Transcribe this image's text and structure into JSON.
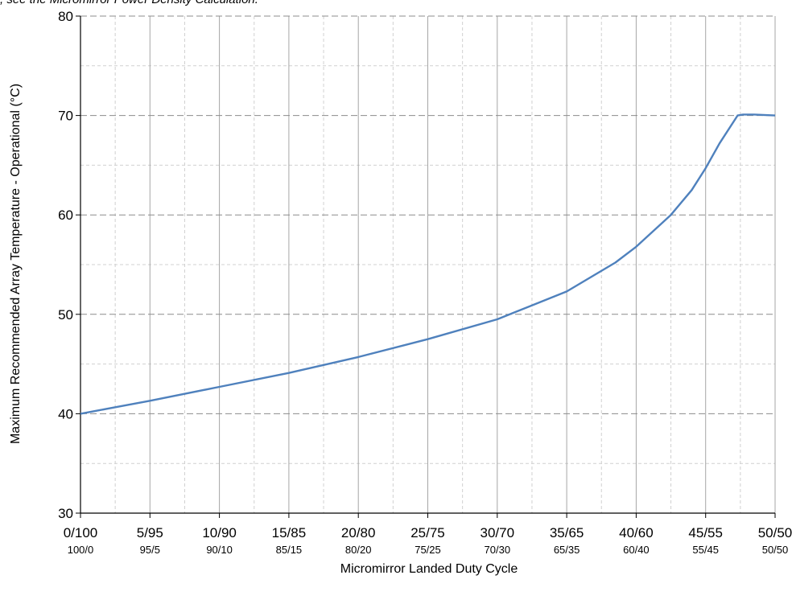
{
  "caption_fragment": ", see the Micromirror Power Density Calculation.",
  "chart_data": {
    "type": "line",
    "title": "",
    "xlabel": "Micromirror Landed Duty Cycle",
    "ylabel": "Maximum Recommended Array Temperature - Operational (°C)",
    "ylim": [
      30,
      80
    ],
    "yticks": [
      30,
      40,
      50,
      60,
      70,
      80
    ],
    "xlim": [
      0,
      50
    ],
    "xticks": [
      0,
      5,
      10,
      15,
      20,
      25,
      30,
      35,
      40,
      45,
      50
    ],
    "xtick_labels_primary": [
      "0/100",
      "5/95",
      "10/90",
      "15/85",
      "20/80",
      "25/75",
      "30/70",
      "35/65",
      "40/60",
      "45/55",
      "50/50"
    ],
    "xtick_labels_secondary": [
      "100/0",
      "95/5",
      "90/10",
      "85/15",
      "80/20",
      "75/25",
      "70/30",
      "65/35",
      "60/40",
      "55/45",
      "50/50"
    ],
    "grid": true,
    "legend": "none",
    "series": [
      {
        "color": "#4f81bd",
        "x": [
          0,
          5,
          10,
          15,
          20,
          25,
          30,
          35,
          38.5,
          40,
          42.5,
          44,
          45,
          46,
          47.3,
          47.7,
          48.5,
          50
        ],
        "y": [
          40,
          41.3,
          42.7,
          44.1,
          45.7,
          47.5,
          49.5,
          52.3,
          55.2,
          56.8,
          60.0,
          62.5,
          64.7,
          67.2,
          70.0,
          70.1,
          70.1,
          70.0
        ]
      }
    ]
  }
}
